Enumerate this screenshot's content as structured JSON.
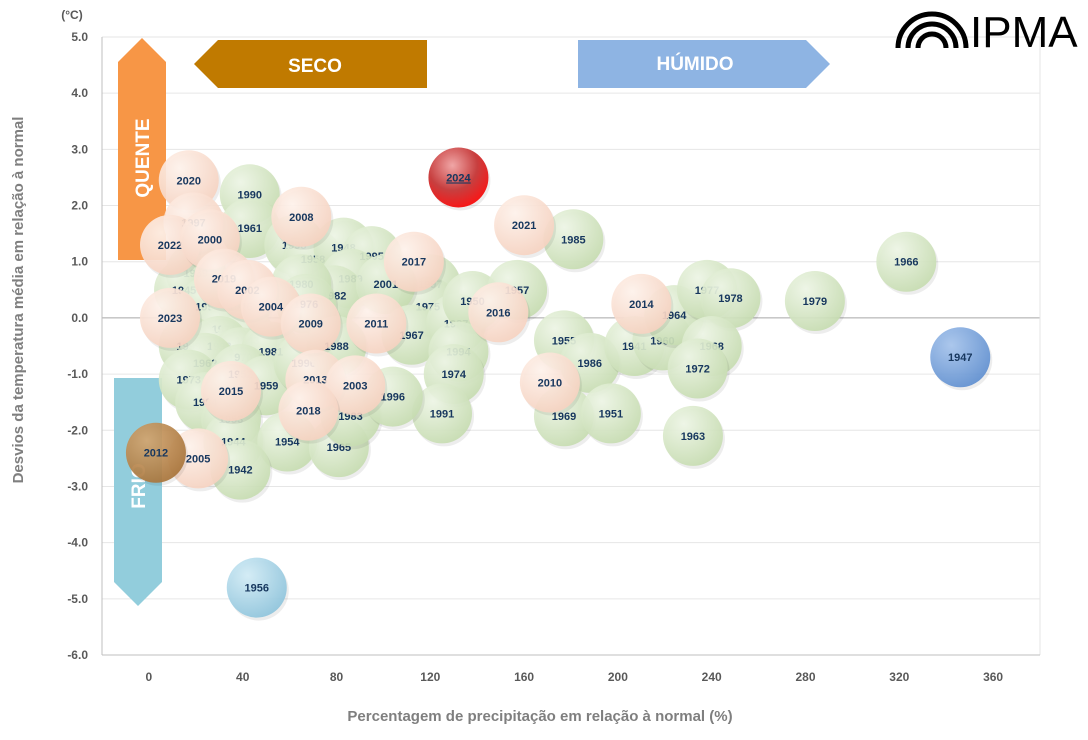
{
  "chart_data": {
    "type": "scatter",
    "xlabel": "Percentagem de precipitação em relação à normal (%)",
    "ylabel": "Desvios da temperatura média em relação à normal",
    "yunit": "(°C)",
    "xlim": [
      -20,
      380
    ],
    "ylim": [
      -6,
      5
    ],
    "xticks": [
      0,
      40,
      80,
      120,
      160,
      200,
      240,
      280,
      320,
      360
    ],
    "yticks": [
      5,
      4,
      3,
      2,
      1,
      0,
      -1,
      -2,
      -3,
      -4,
      -5,
      -6
    ],
    "ytick_labels": [
      "5.0",
      "4.0",
      "3.0",
      "2.0",
      "1.0",
      "0.0",
      "-1.0",
      "-2.0",
      "-3.0",
      "-4.0",
      "-5.0",
      "-6.0"
    ],
    "grid": "horizontal",
    "category_colors": {
      "default": "#d8e8c8",
      "recent": "#fbe0d4",
      "highlight": "#e02020",
      "dry_extreme": "#b8864a",
      "wet_extreme": "#7fa6dc",
      "cold_extreme": "#a6d0e4"
    },
    "points": [
      {
        "label": "1990",
        "x": 43,
        "y": 2.2,
        "cat": "default"
      },
      {
        "label": "1961",
        "x": 43,
        "y": 1.6,
        "cat": "default"
      },
      {
        "label": "1998",
        "x": 62,
        "y": 1.3,
        "cat": "default"
      },
      {
        "label": "1958",
        "x": 70,
        "y": 1.05,
        "cat": "default"
      },
      {
        "label": "1948",
        "x": 83,
        "y": 1.25,
        "cat": "default"
      },
      {
        "label": "1995",
        "x": 95,
        "y": 1.1,
        "cat": "default"
      },
      {
        "label": "1989",
        "x": 86,
        "y": 0.7,
        "cat": "default"
      },
      {
        "label": "1982",
        "x": 79,
        "y": 0.4,
        "cat": "default"
      },
      {
        "label": "1980",
        "x": 65,
        "y": 0.6,
        "cat": "default"
      },
      {
        "label": "1976",
        "x": 67,
        "y": 0.25,
        "cat": "default"
      },
      {
        "label": "1997",
        "x": 120,
        "y": 0.6,
        "cat": "default"
      },
      {
        "label": "1975",
        "x": 119,
        "y": 0.2,
        "cat": "default"
      },
      {
        "label": "2001",
        "x": 101,
        "y": 0.6,
        "cat": "default"
      },
      {
        "label": "1967",
        "x": 112,
        "y": -0.3,
        "cat": "default"
      },
      {
        "label": "1987",
        "x": 131,
        "y": -0.1,
        "cat": "default"
      },
      {
        "label": "1950",
        "x": 138,
        "y": 0.3,
        "cat": "default"
      },
      {
        "label": "1957",
        "x": 157,
        "y": 0.5,
        "cat": "default"
      },
      {
        "label": "1994",
        "x": 132,
        "y": -0.6,
        "cat": "default"
      },
      {
        "label": "1974",
        "x": 130,
        "y": -1.0,
        "cat": "default"
      },
      {
        "label": "1991",
        "x": 125,
        "y": -1.7,
        "cat": "default"
      },
      {
        "label": "1939",
        "x": 20,
        "y": 0.8,
        "cat": "default"
      },
      {
        "label": "1945",
        "x": 15,
        "y": 0.5,
        "cat": "default"
      },
      {
        "label": "1993",
        "x": 25,
        "y": 0.2,
        "cat": "default"
      },
      {
        "label": "1946",
        "x": 39,
        "y": 0.2,
        "cat": "default"
      },
      {
        "label": "1971",
        "x": 32,
        "y": -0.2,
        "cat": "default"
      },
      {
        "label": "1943",
        "x": 42,
        "y": -0.4,
        "cat": "default"
      },
      {
        "label": "1999",
        "x": 17,
        "y": -0.5,
        "cat": "default"
      },
      {
        "label": "1992",
        "x": 30,
        "y": -0.5,
        "cat": "default"
      },
      {
        "label": "1970",
        "x": 39,
        "y": -0.7,
        "cat": "default"
      },
      {
        "label": "1981",
        "x": 52,
        "y": -0.6,
        "cat": "default"
      },
      {
        "label": "1962",
        "x": 24,
        "y": -0.8,
        "cat": "default"
      },
      {
        "label": "1973",
        "x": 17,
        "y": -1.1,
        "cat": "default"
      },
      {
        "label": "1952",
        "x": 39,
        "y": -1.0,
        "cat": "default"
      },
      {
        "label": "1959",
        "x": 50,
        "y": -1.2,
        "cat": "default"
      },
      {
        "label": "1984",
        "x": 24,
        "y": -1.5,
        "cat": "default"
      },
      {
        "label": "1953",
        "x": 35,
        "y": -1.8,
        "cat": "default"
      },
      {
        "label": "1944",
        "x": 36,
        "y": -2.2,
        "cat": "default"
      },
      {
        "label": "1954",
        "x": 59,
        "y": -2.2,
        "cat": "default"
      },
      {
        "label": "1965",
        "x": 81,
        "y": -2.3,
        "cat": "default"
      },
      {
        "label": "1942",
        "x": 39,
        "y": -2.7,
        "cat": "default"
      },
      {
        "label": "1996",
        "x": 66,
        "y": -0.8,
        "cat": "default"
      },
      {
        "label": "1988",
        "x": 80,
        "y": -0.5,
        "cat": "default"
      },
      {
        "label": "1983",
        "x": 86,
        "y": -1.75,
        "cat": "default"
      },
      {
        "label": "1996",
        "x": 104,
        "y": -1.4,
        "cat": "default"
      },
      {
        "label": "1955",
        "x": 177,
        "y": -0.4,
        "cat": "default"
      },
      {
        "label": "1986",
        "x": 188,
        "y": -0.8,
        "cat": "default"
      },
      {
        "label": "1969",
        "x": 177,
        "y": -1.75,
        "cat": "default"
      },
      {
        "label": "1951",
        "x": 197,
        "y": -1.7,
        "cat": "default"
      },
      {
        "label": "1985",
        "x": 181,
        "y": 1.4,
        "cat": "default"
      },
      {
        "label": "1941",
        "x": 207,
        "y": -0.5,
        "cat": "default"
      },
      {
        "label": "1960",
        "x": 219,
        "y": -0.4,
        "cat": "default"
      },
      {
        "label": "1964",
        "x": 224,
        "y": 0.05,
        "cat": "default"
      },
      {
        "label": "1977",
        "x": 238,
        "y": 0.5,
        "cat": "default"
      },
      {
        "label": "1978",
        "x": 248,
        "y": 0.35,
        "cat": "default"
      },
      {
        "label": "1968",
        "x": 240,
        "y": -0.5,
        "cat": "default"
      },
      {
        "label": "1972",
        "x": 234,
        "y": -0.9,
        "cat": "default"
      },
      {
        "label": "1963",
        "x": 232,
        "y": -2.1,
        "cat": "default"
      },
      {
        "label": "1979",
        "x": 284,
        "y": 0.3,
        "cat": "default"
      },
      {
        "label": "1966",
        "x": 323,
        "y": 1.0,
        "cat": "default"
      },
      {
        "label": "2020",
        "x": 17,
        "y": 2.45,
        "cat": "recent"
      },
      {
        "label": "1997",
        "x": 19,
        "y": 1.7,
        "cat": "recent"
      },
      {
        "label": "2022",
        "x": 9,
        "y": 1.3,
        "cat": "recent"
      },
      {
        "label": "2000",
        "x": 26,
        "y": 1.4,
        "cat": "recent"
      },
      {
        "label": "2008",
        "x": 65,
        "y": 1.8,
        "cat": "recent"
      },
      {
        "label": "2017",
        "x": 113,
        "y": 1.0,
        "cat": "recent"
      },
      {
        "label": "2019",
        "x": 32,
        "y": 0.7,
        "cat": "recent"
      },
      {
        "label": "2002",
        "x": 42,
        "y": 0.5,
        "cat": "recent"
      },
      {
        "label": "2004",
        "x": 52,
        "y": 0.2,
        "cat": "recent"
      },
      {
        "label": "2023",
        "x": 9,
        "y": 0.0,
        "cat": "recent"
      },
      {
        "label": "2009",
        "x": 69,
        "y": -0.1,
        "cat": "recent"
      },
      {
        "label": "2011",
        "x": 97,
        "y": -0.1,
        "cat": "recent"
      },
      {
        "label": "2016",
        "x": 149,
        "y": 0.1,
        "cat": "recent"
      },
      {
        "label": "2013",
        "x": 71,
        "y": -1.1,
        "cat": "recent"
      },
      {
        "label": "2003",
        "x": 88,
        "y": -1.2,
        "cat": "recent"
      },
      {
        "label": "2015",
        "x": 35,
        "y": -1.3,
        "cat": "recent"
      },
      {
        "label": "2018",
        "x": 68,
        "y": -1.65,
        "cat": "recent"
      },
      {
        "label": "2005",
        "x": 21,
        "y": -2.5,
        "cat": "recent"
      },
      {
        "label": "2021",
        "x": 160,
        "y": 1.65,
        "cat": "recent"
      },
      {
        "label": "2014",
        "x": 210,
        "y": 0.25,
        "cat": "recent"
      },
      {
        "label": "2010",
        "x": 171,
        "y": -1.15,
        "cat": "recent"
      },
      {
        "label": "2024",
        "x": 132,
        "y": 2.5,
        "cat": "highlight"
      },
      {
        "label": "2012",
        "x": 3,
        "y": -2.4,
        "cat": "dry_extreme"
      },
      {
        "label": "1947",
        "x": 346,
        "y": -0.7,
        "cat": "wet_extreme"
      },
      {
        "label": "1956",
        "x": 46,
        "y": -4.8,
        "cat": "cold_extreme"
      }
    ]
  },
  "quadrants": {
    "dry_label": "SECO",
    "wet_label": "HÚMIDO",
    "hot_label": "QUENTE",
    "cold_label": "FRIO",
    "dry_color": "#c07a00",
    "wet_color": "#8eb4e3",
    "hot_color": "#f79646",
    "cold_color": "#92cddc"
  },
  "logo": {
    "text": "IPMA"
  }
}
